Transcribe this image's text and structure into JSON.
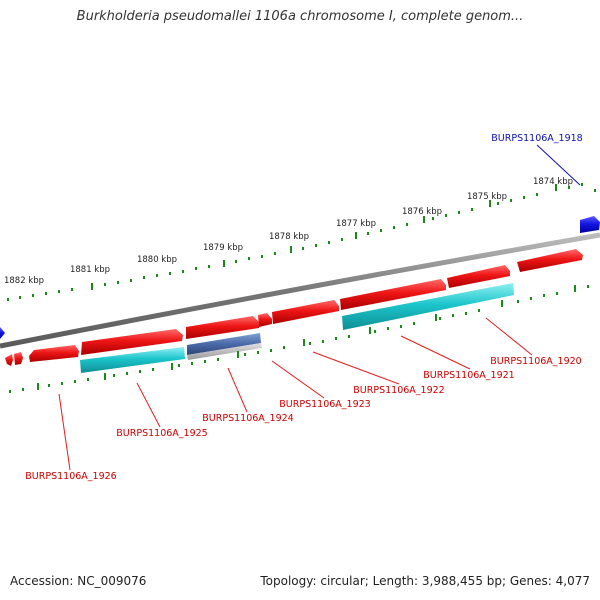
{
  "title": "Burkholderia pseudomallei 1106a chromosome I, complete genom...",
  "footer": {
    "accession": "Accession: NC_009076",
    "summary": "Topology: circular; Length: 3,988,455 bp; Genes: 4,077"
  },
  "colors": {
    "forward_gene": "#e81010",
    "reverse_cds": "#19c2c8",
    "highlight_gene": "#4a6aa8",
    "scale_ticks": "#1a8a1a",
    "backbone": "#7a7a7a",
    "label_red": "#cc0000",
    "label_blue": "#1010b0"
  },
  "scale_labels": [
    "1874 kbp",
    "1875 kbp",
    "1876 kbp",
    "1877 kbp",
    "1878 kbp",
    "1879 kbp",
    "1880 kbp",
    "1881 kbp",
    "1882 kbp"
  ],
  "gene_labels": [
    {
      "text": "BURPS1106A_1918",
      "color": "blue"
    },
    {
      "text": "BURPS1106A_1920",
      "color": "red"
    },
    {
      "text": "BURPS1106A_1921",
      "color": "red"
    },
    {
      "text": "BURPS1106A_1922",
      "color": "red"
    },
    {
      "text": "BURPS1106A_1923",
      "color": "red"
    },
    {
      "text": "BURPS1106A_1924",
      "color": "red"
    },
    {
      "text": "BURPS1106A_1925",
      "color": "red"
    },
    {
      "text": "BURPS1106A_1926",
      "color": "red"
    }
  ]
}
